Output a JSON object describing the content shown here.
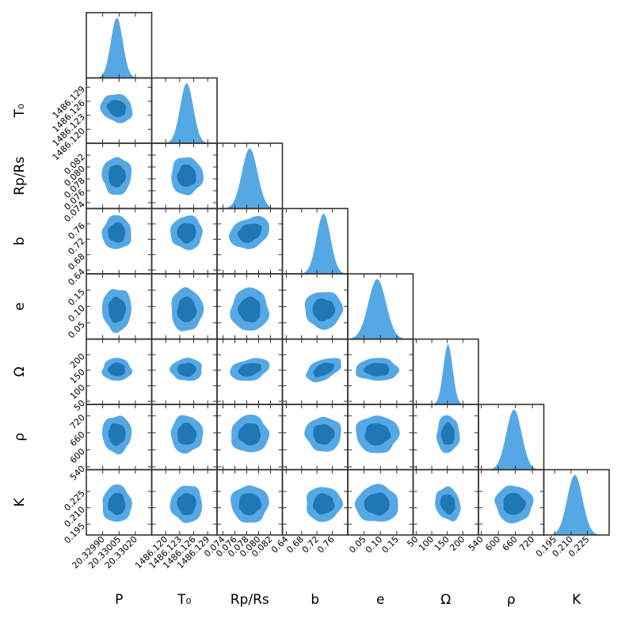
{
  "chart_data": {
    "type": "corner",
    "contour_colors": {
      "outer": "#56a8e4",
      "inner": "#1f77b4",
      "hist": "#56a8e4",
      "frame": "#333333"
    },
    "parameters": [
      {
        "key": "P",
        "label": "P",
        "ticks": [
          "20.32990",
          "20.33005",
          "20.33020"
        ],
        "range": [
          20.32975,
          20.33035
        ],
        "mean": 20.33003,
        "sd": 5.5e-05
      },
      {
        "key": "T0",
        "label": "T₀",
        "ticks": [
          "1486.120",
          "1486.123",
          "1486.126",
          "1486.129"
        ],
        "range": [
          1486.117,
          1486.131
        ],
        "mean": 1486.1245,
        "sd": 0.0014
      },
      {
        "key": "Rp_Rs",
        "label": "Rp/Rs",
        "ticks": [
          "0.074",
          "0.076",
          "0.078",
          "0.080",
          "0.082"
        ],
        "range": [
          0.073,
          0.084
        ],
        "mean": 0.0785,
        "sd": 0.0013
      },
      {
        "key": "b",
        "label": "b",
        "ticks": [
          "0.64",
          "0.68",
          "0.72",
          "0.76"
        ],
        "range": [
          0.63,
          0.8
        ],
        "mean": 0.737,
        "sd": 0.018
      },
      {
        "key": "e",
        "label": "e",
        "ticks": [
          "0.05",
          "0.10",
          "0.15"
        ],
        "range": [
          0.0,
          0.2
        ],
        "mean": 0.09,
        "sd": 0.027
      },
      {
        "key": "Omega",
        "label": "Ω",
        "ticks": [
          "50",
          "100",
          "150",
          "200"
        ],
        "range": [
          40,
          250
        ],
        "mean": 152,
        "sd": 15
      },
      {
        "key": "rho",
        "label": "ρ",
        "ticks": [
          "540",
          "600",
          "660",
          "720"
        ],
        "range": [
          530,
          760
        ],
        "mean": 655,
        "sd": 27
      },
      {
        "key": "K",
        "label": "K",
        "ticks": [
          "0.195",
          "0.210",
          "0.225"
        ],
        "range": [
          0.185,
          0.245
        ],
        "mean": 0.2135,
        "sd": 0.007
      }
    ],
    "correlations": [
      {
        "row": "T0",
        "col": "P",
        "r": -0.6
      },
      {
        "row": "b",
        "col": "Rp_Rs",
        "r": 0.55
      },
      {
        "row": "e",
        "col": "b",
        "r": -0.55
      },
      {
        "row": "Omega",
        "col": "Rp_Rs",
        "r": 0.3
      },
      {
        "row": "Omega",
        "col": "b",
        "r": 0.55
      },
      {
        "row": "rho",
        "col": "b",
        "r": -0.35
      },
      {
        "row": "K",
        "col": "b",
        "r": 0.3
      },
      {
        "row": "K",
        "col": "Omega",
        "r": 0.35
      }
    ]
  }
}
